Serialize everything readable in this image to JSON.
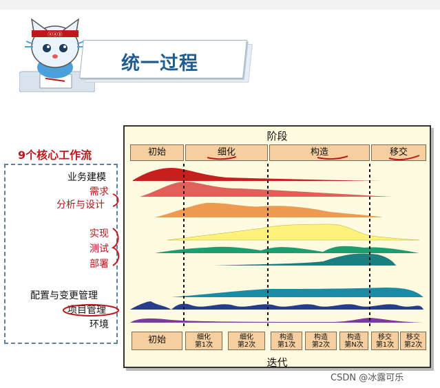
{
  "header": {
    "title": "统一过程",
    "cat_band": "ⓢⓐⓑ"
  },
  "left": {
    "core_title": "9个核心工作流",
    "workflows": [
      "业务建模",
      "需求",
      "分析与设计",
      "实现",
      "测试",
      "部署",
      "配置与变更管理",
      "项目管理",
      "环境"
    ]
  },
  "diagram": {
    "phase_title": "阶段",
    "iteration_title": "迭代",
    "phases": [
      "初始",
      "细化",
      "构造",
      "移交"
    ],
    "iterations": [
      "初始",
      "细化\n第1次",
      "细化\n第2次",
      "构造\n第1次",
      "构造\n第2次",
      "构造\n第N次",
      "移交\n第1次",
      "移交\n第2次"
    ]
  },
  "watermark": "CSDN @冰露可乐",
  "colors": {
    "accent_red": "#c0161c",
    "title_blue": "#1f5c8f",
    "panel_bg": "#fffbe0",
    "phase_box": "#f6cfa0"
  }
}
